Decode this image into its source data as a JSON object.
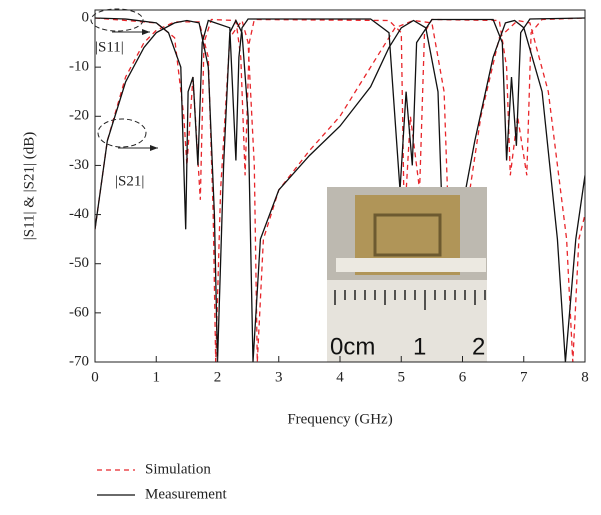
{
  "chart_data": {
    "type": "line",
    "xlabel": "Frequency (GHz)",
    "ylabel": "|S11| & |S21| (dB)",
    "xlim": [
      0,
      8
    ],
    "xticks": [
      0,
      1,
      2,
      3,
      4,
      5,
      6,
      7,
      8
    ],
    "ylim": [
      -70,
      0
    ],
    "yticks": [
      0,
      -10,
      -20,
      -30,
      -40,
      -50,
      -60,
      -70
    ],
    "annotations": [
      "|S11|",
      "|S21|"
    ],
    "photo_labels": [
      "0cm",
      "1",
      "2"
    ],
    "series": [
      {
        "name": "Simulation",
        "color": "#e8262b",
        "dash": "5 4"
      },
      {
        "name": "Measurement",
        "color": "#111111",
        "dash": "none"
      }
    ],
    "curves": [
      {
        "series": 0,
        "x": [
          0,
          0.2,
          0.5,
          0.8,
          1.0,
          1.3,
          1.7,
          1.85,
          1.93,
          1.97,
          2.05,
          2.2,
          2.4,
          2.5,
          2.6,
          2.65,
          2.75,
          3,
          3.5,
          4,
          4.5,
          4.9,
          5.2,
          5.5,
          5.7,
          5.85,
          6.0,
          6.3,
          6.6,
          6.9,
          7.1,
          7.4,
          7.7,
          7.8,
          7.9,
          8
        ],
        "values": [
          -43,
          -25,
          -12,
          -5,
          -2.5,
          -0.8,
          -0.8,
          -8,
          -40,
          -70,
          -35,
          -4,
          -0.5,
          -5,
          -30,
          -70,
          -45,
          -35,
          -27,
          -20,
          -10,
          -2,
          -0.5,
          -1,
          -15,
          -70,
          -45,
          -20,
          -4,
          -0.5,
          -1,
          -15,
          -45,
          -70,
          -45,
          -40
        ]
      },
      {
        "series": 0,
        "x": [
          0,
          1.0,
          1.3,
          1.45,
          1.5,
          1.6,
          1.72,
          1.78,
          1.9,
          2.3,
          2.38,
          2.45,
          2.52,
          2.6,
          4.8,
          5.0,
          5.05,
          5.15,
          5.3,
          5.38,
          5.5,
          6.6,
          6.72,
          6.78,
          6.9,
          7.05,
          7.12,
          7.3,
          8
        ],
        "values": [
          0,
          -1,
          -4,
          -20,
          -30,
          -12,
          -37,
          -5,
          -0.3,
          -0.5,
          -8,
          -32,
          -5,
          -0.3,
          -0.5,
          -3,
          -42,
          -20,
          -35,
          -3,
          -0.3,
          -0.5,
          -10,
          -32,
          -20,
          -32,
          -3,
          -0.3,
          0
        ]
      },
      {
        "series": 1,
        "x": [
          0,
          0.2,
          0.5,
          0.8,
          1.0,
          1.3,
          1.5,
          1.7,
          1.85,
          1.95,
          2.0,
          2.1,
          2.2,
          2.3,
          2.4,
          2.5,
          2.58,
          2.7,
          3.0,
          3.5,
          4.0,
          4.5,
          4.8,
          5.0,
          5.2,
          5.4,
          5.6,
          5.75,
          5.9,
          6.2,
          6.5,
          6.7,
          6.85,
          7.0,
          7.3,
          7.55,
          7.68,
          7.85,
          8.0
        ],
        "values": [
          -43,
          -25,
          -13,
          -6,
          -3,
          -1,
          -0.5,
          -1,
          -10,
          -40,
          -70,
          -30,
          -3,
          -0.5,
          -3,
          -20,
          -70,
          -45,
          -35,
          -28,
          -22,
          -14,
          -6,
          -2,
          -0.5,
          -2,
          -15,
          -70,
          -45,
          -25,
          -8,
          -1,
          -0.5,
          -2,
          -15,
          -45,
          -70,
          -45,
          -32
        ]
      },
      {
        "series": 1,
        "x": [
          0,
          0.5,
          1.0,
          1.2,
          1.4,
          1.48,
          1.52,
          1.6,
          1.68,
          1.75,
          1.85,
          2.2,
          2.3,
          2.35,
          2.4,
          2.5,
          4.5,
          4.8,
          4.98,
          5.08,
          5.18,
          5.25,
          5.5,
          6.5,
          6.65,
          6.72,
          6.8,
          6.88,
          6.95,
          7.1,
          8
        ],
        "values": [
          0,
          -0.2,
          -1,
          -3,
          -10,
          -43,
          -15,
          -12,
          -30,
          -5,
          -0.5,
          -2,
          -29,
          -8,
          -2,
          -0.2,
          -0.2,
          -3,
          -35,
          -15,
          -30,
          -5,
          -0.3,
          -0.3,
          -5,
          -29,
          -12,
          -26,
          -3,
          -0.2,
          0
        ]
      }
    ]
  }
}
